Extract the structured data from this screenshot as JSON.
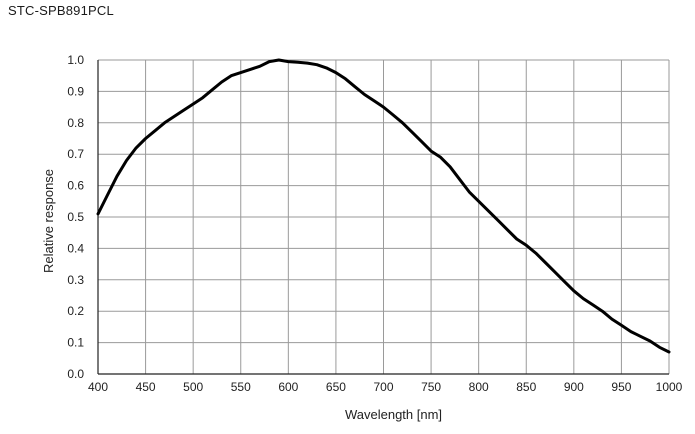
{
  "chart_data": {
    "type": "line",
    "title": "STC-SPB891PCL",
    "xlabel": "Wavelength  [nm]",
    "ylabel": "Relative  response",
    "xlim": [
      400,
      1000
    ],
    "ylim": [
      0.0,
      1.0
    ],
    "x_ticks": [
      400,
      450,
      500,
      550,
      600,
      650,
      700,
      750,
      800,
      850,
      900,
      950,
      1000
    ],
    "y_ticks": [
      "0.0",
      "0.1",
      "0.2",
      "0.3",
      "0.4",
      "0.5",
      "0.6",
      "0.7",
      "0.8",
      "0.9",
      "1.0"
    ],
    "grid": true,
    "colors": {
      "line": "#000000",
      "grid": "#9a9a9a",
      "axis": "#222222"
    },
    "series": [
      {
        "x": [
          400,
          410,
          420,
          430,
          440,
          450,
          460,
          470,
          480,
          490,
          500,
          510,
          520,
          530,
          540,
          550,
          560,
          570,
          580,
          590,
          600,
          610,
          620,
          630,
          640,
          650,
          660,
          670,
          680,
          690,
          700,
          710,
          720,
          730,
          740,
          750,
          760,
          770,
          780,
          790,
          800,
          810,
          820,
          830,
          840,
          850,
          860,
          870,
          880,
          890,
          900,
          910,
          920,
          930,
          940,
          950,
          960,
          970,
          980,
          990,
          1000
        ],
        "y": [
          0.51,
          0.57,
          0.63,
          0.68,
          0.72,
          0.75,
          0.775,
          0.8,
          0.82,
          0.84,
          0.86,
          0.88,
          0.905,
          0.93,
          0.95,
          0.96,
          0.97,
          0.98,
          0.995,
          1.0,
          0.995,
          0.993,
          0.99,
          0.985,
          0.975,
          0.96,
          0.94,
          0.915,
          0.89,
          0.87,
          0.85,
          0.825,
          0.8,
          0.77,
          0.74,
          0.71,
          0.69,
          0.66,
          0.62,
          0.58,
          0.55,
          0.52,
          0.49,
          0.46,
          0.43,
          0.41,
          0.385,
          0.355,
          0.325,
          0.295,
          0.265,
          0.24,
          0.22,
          0.2,
          0.175,
          0.155,
          0.135,
          0.12,
          0.105,
          0.085,
          0.07
        ]
      }
    ]
  }
}
